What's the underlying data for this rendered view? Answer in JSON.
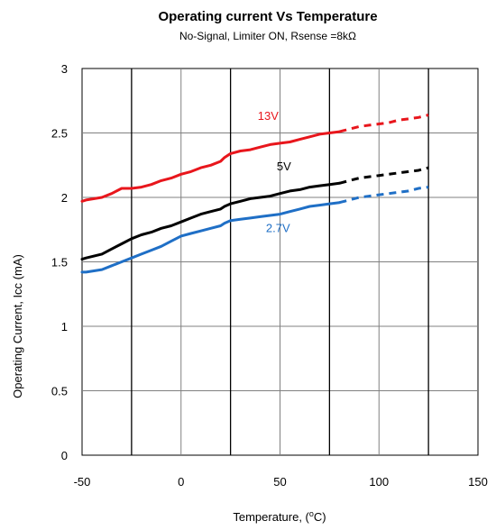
{
  "chart_data": {
    "type": "line",
    "title": "Operating current Vs Temperature",
    "subtitle": "No-Signal, Limiter ON, Rsense =8kΩ",
    "xlabel": "Temperature, (°C)",
    "ylabel": "Operating Current, Icc (mA)",
    "xlim": [
      -50,
      150
    ],
    "ylim": [
      0,
      3
    ],
    "xticks": [
      -50,
      0,
      50,
      100,
      150
    ],
    "yticks": [
      0,
      0.5,
      1,
      1.5,
      2,
      2.5,
      3
    ],
    "ytick_labels": [
      "0",
      "0.5",
      "1",
      "1.5",
      "2",
      "2.5",
      "3"
    ],
    "major_gridlines_x": [
      -25,
      25,
      75,
      125
    ],
    "grid": true,
    "dashed_after_x": 80,
    "series": [
      {
        "name": "13V",
        "color": "#e8161c",
        "x": [
          -50,
          -48,
          -40,
          -35,
          -30,
          -25,
          -20,
          -15,
          -10,
          -5,
          0,
          5,
          10,
          15,
          20,
          22,
          25,
          30,
          35,
          40,
          45,
          50,
          55,
          60,
          65,
          70,
          75,
          80,
          85,
          90,
          95,
          100,
          105,
          110,
          115,
          120,
          125
        ],
        "y": [
          1.97,
          1.98,
          2.0,
          2.03,
          2.07,
          2.07,
          2.08,
          2.1,
          2.13,
          2.15,
          2.18,
          2.2,
          2.23,
          2.25,
          2.28,
          2.31,
          2.34,
          2.36,
          2.37,
          2.39,
          2.41,
          2.42,
          2.43,
          2.45,
          2.47,
          2.49,
          2.5,
          2.51,
          2.53,
          2.55,
          2.56,
          2.57,
          2.58,
          2.6,
          2.61,
          2.62,
          2.64
        ]
      },
      {
        "name": "5V",
        "color": "#000000",
        "x": [
          -50,
          -48,
          -40,
          -35,
          -30,
          -25,
          -20,
          -15,
          -10,
          -5,
          0,
          5,
          10,
          15,
          20,
          22,
          25,
          30,
          35,
          40,
          45,
          50,
          55,
          60,
          65,
          70,
          75,
          80,
          85,
          90,
          95,
          100,
          105,
          110,
          115,
          120,
          125
        ],
        "y": [
          1.52,
          1.53,
          1.56,
          1.6,
          1.64,
          1.68,
          1.71,
          1.73,
          1.76,
          1.78,
          1.81,
          1.84,
          1.87,
          1.89,
          1.91,
          1.93,
          1.95,
          1.97,
          1.99,
          2.0,
          2.01,
          2.03,
          2.05,
          2.06,
          2.08,
          2.09,
          2.1,
          2.11,
          2.13,
          2.15,
          2.16,
          2.17,
          2.18,
          2.19,
          2.2,
          2.21,
          2.23
        ]
      },
      {
        "name": "2.7V",
        "color": "#1f6fc6",
        "x": [
          -50,
          -48,
          -40,
          -35,
          -30,
          -25,
          -20,
          -15,
          -10,
          -5,
          0,
          5,
          10,
          15,
          20,
          22,
          25,
          30,
          35,
          40,
          45,
          50,
          55,
          60,
          65,
          70,
          75,
          80,
          85,
          90,
          95,
          100,
          105,
          110,
          115,
          120,
          125
        ],
        "y": [
          1.42,
          1.42,
          1.44,
          1.47,
          1.5,
          1.53,
          1.56,
          1.59,
          1.62,
          1.66,
          1.7,
          1.72,
          1.74,
          1.76,
          1.78,
          1.8,
          1.82,
          1.83,
          1.84,
          1.85,
          1.86,
          1.87,
          1.89,
          1.91,
          1.93,
          1.94,
          1.95,
          1.96,
          1.98,
          2.0,
          2.01,
          2.02,
          2.03,
          2.04,
          2.05,
          2.07,
          2.08
        ]
      }
    ],
    "series_labels": [
      {
        "text": "13V",
        "x": 44,
        "y": 2.6
      },
      {
        "text": "5V",
        "x": 52,
        "y": 2.21
      },
      {
        "text": "2.7V",
        "x": 49,
        "y": 1.73
      }
    ]
  }
}
